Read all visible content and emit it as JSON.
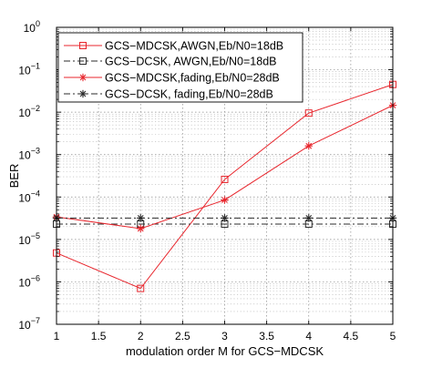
{
  "chart_data": {
    "type": "line",
    "y_scale": "log",
    "xlabel": "modulation order M for GCS−MDCSK",
    "ylabel": "BER",
    "xlim": [
      1,
      5
    ],
    "ylim": [
      1e-07,
      1
    ],
    "x_ticks": [
      1,
      1.5,
      2,
      2.5,
      3,
      3.5,
      4,
      4.5,
      5
    ],
    "x_tick_labels": [
      "1",
      "1.5",
      "2",
      "2.5",
      "3",
      "3.5",
      "4",
      "4.5",
      "5"
    ],
    "y_ticks": [
      {
        "value": 1e-07,
        "base": "10",
        "exp": "−7"
      },
      {
        "value": 1e-06,
        "base": "10",
        "exp": "−6"
      },
      {
        "value": 1e-05,
        "base": "10",
        "exp": "−5"
      },
      {
        "value": 0.0001,
        "base": "10",
        "exp": "−4"
      },
      {
        "value": 0.001,
        "base": "10",
        "exp": "−3"
      },
      {
        "value": 0.01,
        "base": "10",
        "exp": "−2"
      },
      {
        "value": 0.1,
        "base": "10",
        "exp": "−1"
      },
      {
        "value": 1,
        "base": "10",
        "exp": "0"
      }
    ],
    "grid": true,
    "legend_position": "top-left",
    "series": [
      {
        "name": "GCS−MDCSK,AWGN,Eb/N0=18dB",
        "color": "#e8262d",
        "marker": "square",
        "line": "solid",
        "x": [
          1,
          2,
          3,
          4,
          5
        ],
        "y": [
          4.8e-06,
          7e-07,
          0.00026,
          0.0095,
          0.045
        ]
      },
      {
        "name": "GCS−DCSK, AWGN,Eb/N0=18dB",
        "color": "#2b2b2b",
        "marker": "square",
        "line": "dashdot",
        "x": [
          1,
          2,
          3,
          4,
          5
        ],
        "y": [
          2.3e-05,
          2.3e-05,
          2.3e-05,
          2.3e-05,
          2.3e-05
        ]
      },
      {
        "name": "GCS−MDCSK,fading,Eb/N0=28dB",
        "color": "#e8262d",
        "marker": "star",
        "line": "solid",
        "x": [
          1,
          2,
          3,
          4,
          5
        ],
        "y": [
          3.4e-05,
          1.8e-05,
          8.5e-05,
          0.0016,
          0.0145
        ]
      },
      {
        "name": "GCS−DCSK,  fading,Eb/N0=28dB",
        "color": "#2b2b2b",
        "marker": "star",
        "line": "dashdot",
        "x": [
          1,
          2,
          3,
          4,
          5
        ],
        "y": [
          3.2e-05,
          3.2e-05,
          3.2e-05,
          3.2e-05,
          3.2e-05
        ]
      }
    ]
  }
}
